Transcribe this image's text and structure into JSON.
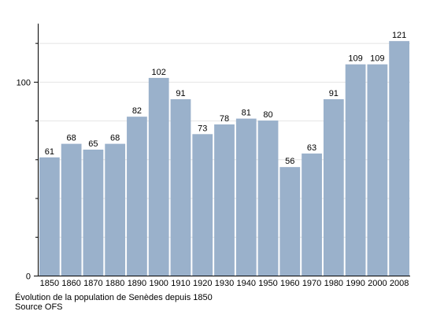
{
  "chart_data": {
    "type": "bar",
    "categories": [
      "1850",
      "1860",
      "1870",
      "1880",
      "1890",
      "1900",
      "1910",
      "1920",
      "1930",
      "1940",
      "1950",
      "1960",
      "1970",
      "1980",
      "1990",
      "2000",
      "2008"
    ],
    "values": [
      61,
      68,
      65,
      68,
      82,
      102,
      91,
      73,
      78,
      81,
      80,
      56,
      63,
      91,
      109,
      109,
      121
    ],
    "data_labels": [
      "61",
      "68",
      "65",
      "68",
      "82",
      "102",
      "91",
      "73",
      "78",
      "81",
      "80",
      "56",
      "63",
      "91",
      "109",
      "109",
      "121"
    ],
    "y_ticks": [
      0,
      100
    ],
    "y_tick_labels": [
      "0",
      "100"
    ],
    "y_minor_ticks": [
      20,
      40,
      60,
      80,
      120
    ],
    "ylim": [
      0,
      130
    ],
    "grid": true,
    "bar_color": "#9ab1cb",
    "caption": "Évolution de la population de Senèdes depuis 1850",
    "source": "Source OFS"
  }
}
